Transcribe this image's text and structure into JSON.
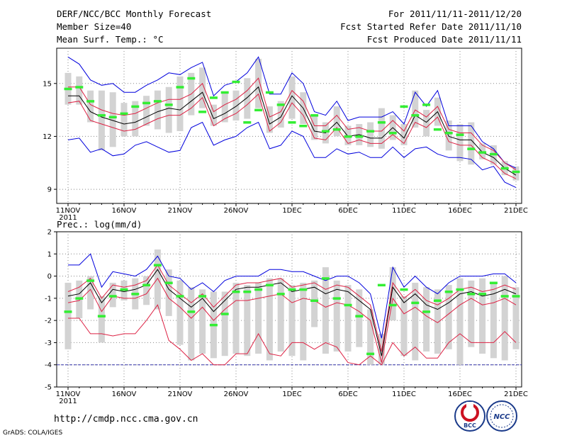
{
  "header": {
    "title": "DERF/NCC/BCC Monthly Forecast",
    "member_size": "Member Size=40",
    "variable_label": "Mean Surf. Temp.: °C",
    "period": "For 2011/11/11-2011/12/20",
    "started": "Fcst Started Refer Date 2011/11/10",
    "produced": "Fcst Produced Date 2011/11/11"
  },
  "footer": {
    "url": "http://cmdp.ncc.cma.gov.cn",
    "credit": "GrADS: COLA/IGES",
    "logo_left": "BCC",
    "logo_right": "NCC"
  },
  "colors": {
    "bar": "#d3d3d3",
    "green": "#33ee33",
    "mean": "#000000",
    "red": "#dd2244",
    "blue": "#0000dd",
    "grid": "#888888"
  },
  "chart_data": [
    {
      "type": "line",
      "title": "Mean Surf. Temp.: °C",
      "x_tick_labels": [
        "11NOV",
        "16NOV",
        "21NOV",
        "26NOV",
        "1DEC",
        "6DEC",
        "11DEC",
        "16DEC",
        "21DEC"
      ],
      "x_year_label": "2011",
      "ylim": [
        8.2,
        17.0
      ],
      "yticks": [
        9,
        12,
        15
      ],
      "days": 41,
      "series": [
        {
          "name": "mean",
          "values": [
            14.3,
            14.3,
            13.4,
            13.1,
            12.9,
            12.7,
            12.8,
            13.1,
            13.4,
            13.6,
            13.5,
            14.0,
            14.5,
            13.0,
            13.3,
            13.7,
            14.2,
            14.8,
            12.7,
            13.1,
            14.3,
            13.6,
            12.3,
            12.2,
            12.8,
            12.0,
            12.1,
            11.9,
            11.9,
            12.5,
            11.9,
            13.2,
            12.8,
            13.4,
            12.0,
            11.8,
            11.8,
            11.1,
            10.8,
            10.2,
            9.8
          ]
        },
        {
          "name": "upper",
          "values": [
            14.8,
            14.8,
            13.8,
            13.5,
            13.3,
            13.2,
            13.3,
            13.6,
            13.9,
            14.1,
            14.1,
            14.4,
            15.0,
            13.4,
            13.8,
            14.1,
            14.6,
            15.3,
            13.1,
            13.4,
            14.6,
            14.0,
            12.6,
            12.6,
            13.2,
            12.4,
            12.5,
            12.3,
            12.3,
            12.9,
            12.3,
            13.5,
            13.1,
            13.7,
            12.4,
            12.2,
            12.2,
            11.5,
            11.2,
            10.5,
            10.1
          ]
        },
        {
          "name": "lower",
          "values": [
            13.9,
            14.0,
            12.9,
            12.7,
            12.5,
            12.3,
            12.4,
            12.7,
            13.0,
            13.2,
            13.2,
            13.6,
            14.2,
            12.6,
            13.0,
            13.3,
            13.8,
            14.4,
            12.3,
            12.8,
            13.9,
            13.2,
            11.9,
            11.8,
            12.5,
            11.6,
            11.8,
            11.6,
            11.6,
            12.1,
            11.6,
            12.8,
            12.5,
            13.1,
            11.7,
            11.5,
            11.5,
            10.8,
            10.5,
            9.9,
            9.6
          ]
        },
        {
          "name": "max",
          "values": [
            16.5,
            16.1,
            15.2,
            14.9,
            15.0,
            14.5,
            14.5,
            14.9,
            15.2,
            15.6,
            15.5,
            15.9,
            16.2,
            14.3,
            14.9,
            15.1,
            15.6,
            16.5,
            14.4,
            14.4,
            15.6,
            15.0,
            13.4,
            13.2,
            14.0,
            12.9,
            13.1,
            13.1,
            13.1,
            13.4,
            12.7,
            14.5,
            13.7,
            14.6,
            12.6,
            12.6,
            12.6,
            11.7,
            11.3,
            10.5,
            10.2
          ]
        },
        {
          "name": "min",
          "values": [
            11.8,
            11.9,
            11.1,
            11.3,
            10.9,
            11.0,
            11.5,
            11.7,
            11.4,
            11.1,
            11.2,
            12.5,
            12.8,
            11.5,
            11.8,
            12.0,
            12.5,
            12.8,
            11.3,
            11.5,
            12.3,
            12.0,
            10.8,
            10.8,
            11.3,
            11.0,
            11.1,
            10.8,
            10.8,
            11.4,
            10.8,
            11.3,
            11.4,
            11.0,
            10.8,
            10.8,
            10.7,
            10.1,
            10.3,
            9.4,
            9.1
          ]
        },
        {
          "name": "green",
          "values": [
            14.7,
            14.8,
            14.0,
            13.2,
            13.1,
            13.3,
            13.7,
            13.9,
            14.0,
            13.8,
            14.8,
            15.3,
            13.4,
            14.2,
            14.5,
            15.1,
            12.8,
            13.5,
            14.5,
            13.8,
            12.8,
            12.6,
            13.2,
            12.3,
            12.4,
            12.0,
            12.0,
            12.3,
            12.8,
            12.2,
            13.7,
            13.2,
            13.8,
            12.4,
            12.2,
            12.1,
            11.3,
            11.1,
            11.0,
            10.2,
            10.0
          ]
        },
        {
          "name": "bar_top",
          "values": [
            15.6,
            15.4,
            14.6,
            14.6,
            14.5,
            13.9,
            14.0,
            14.3,
            14.6,
            14.8,
            15.4,
            15.6,
            15.9,
            13.8,
            14.5,
            14.6,
            15.3,
            16.4,
            13.7,
            14.0,
            15.4,
            14.5,
            13.2,
            12.8,
            13.7,
            12.6,
            12.7,
            12.8,
            13.6,
            13.2,
            12.7,
            14.6,
            13.5,
            14.2,
            12.9,
            12.7,
            12.8,
            11.6,
            11.5,
            10.6,
            10.3
          ]
        },
        {
          "name": "bar_bottom",
          "values": [
            13.8,
            13.8,
            12.8,
            11.2,
            11.4,
            12.0,
            12.0,
            12.6,
            12.4,
            12.2,
            12.3,
            13.2,
            13.6,
            12.6,
            12.8,
            12.9,
            13.0,
            13.6,
            12.2,
            12.5,
            13.0,
            12.7,
            11.8,
            11.6,
            12.0,
            11.5,
            11.5,
            11.4,
            11.3,
            11.8,
            11.5,
            12.5,
            12.0,
            12.6,
            11.2,
            10.6,
            10.4,
            10.7,
            10.4,
            9.8,
            9.5
          ]
        }
      ]
    },
    {
      "type": "line",
      "title": "Prec.: log(mm/d)",
      "x_tick_labels": [
        "11NOV",
        "16NOV",
        "21NOV",
        "26NOV",
        "1DEC",
        "6DEC",
        "11DEC",
        "16DEC",
        "21DEC"
      ],
      "x_year_label": "2011",
      "ylim": [
        -5,
        2
      ],
      "yticks": [
        -5,
        -4,
        -3,
        -2,
        -1,
        0,
        1,
        2
      ],
      "days": 41,
      "baseline": -4,
      "series": [
        {
          "name": "mean",
          "values": [
            -0.9,
            -0.8,
            -0.3,
            -1.2,
            -0.6,
            -0.7,
            -0.6,
            -0.4,
            0.3,
            -0.6,
            -1.0,
            -1.4,
            -1.0,
            -1.6,
            -1.1,
            -0.6,
            -0.5,
            -0.5,
            -0.4,
            -0.3,
            -0.7,
            -0.6,
            -0.5,
            -0.8,
            -0.6,
            -0.7,
            -1.1,
            -1.5,
            -3.6,
            -0.5,
            -1.2,
            -0.8,
            -1.3,
            -1.5,
            -1.2,
            -0.8,
            -0.7,
            -0.9,
            -0.8,
            -0.6,
            -0.8
          ]
        },
        {
          "name": "upper",
          "values": [
            -0.7,
            -0.5,
            -0.1,
            -1.0,
            -0.4,
            -0.5,
            -0.4,
            -0.2,
            0.5,
            -0.4,
            -0.8,
            -1.2,
            -0.8,
            -1.4,
            -0.9,
            -0.4,
            -0.3,
            -0.3,
            -0.2,
            -0.1,
            -0.5,
            -0.4,
            -0.3,
            -0.6,
            -0.4,
            -0.5,
            -0.9,
            -1.3,
            -3.4,
            -0.3,
            -1.0,
            -0.6,
            -1.1,
            -1.3,
            -1.0,
            -0.6,
            -0.5,
            -0.7,
            -0.6,
            -0.4,
            -0.6
          ]
        },
        {
          "name": "lower",
          "values": [
            -1.2,
            -1.1,
            -0.6,
            -1.6,
            -0.9,
            -1.0,
            -1.0,
            -0.8,
            -0.1,
            -1.0,
            -1.4,
            -1.9,
            -1.4,
            -2.0,
            -1.5,
            -1.1,
            -1.1,
            -1.0,
            -0.9,
            -0.8,
            -1.2,
            -1.0,
            -1.1,
            -1.4,
            -1.2,
            -1.3,
            -1.6,
            -2.0,
            -3.9,
            -1.0,
            -1.7,
            -1.4,
            -1.8,
            -2.1,
            -1.7,
            -1.3,
            -1.0,
            -1.3,
            -1.2,
            -1.0,
            -1.3
          ]
        },
        {
          "name": "max",
          "values": [
            0.5,
            0.5,
            1.0,
            -0.5,
            0.2,
            0.1,
            0.0,
            0.3,
            0.9,
            0.0,
            -0.1,
            -0.6,
            -0.3,
            -0.7,
            -0.2,
            0.0,
            0.0,
            0.0,
            0.3,
            0.3,
            0.2,
            0.2,
            0.0,
            -0.2,
            0.0,
            0.0,
            -0.3,
            -0.8,
            -2.8,
            0.4,
            -0.5,
            0.0,
            -0.5,
            -0.8,
            -0.3,
            0.0,
            0.0,
            0.0,
            0.1,
            0.1,
            -0.3
          ]
        },
        {
          "name": "min",
          "values": [
            -1.9,
            -1.9,
            -2.6,
            -2.6,
            -2.7,
            -2.6,
            -2.6,
            -2.0,
            -1.3,
            -2.9,
            -3.3,
            -3.8,
            -3.5,
            -4.0,
            -4.0,
            -3.5,
            -3.5,
            -2.6,
            -3.5,
            -3.6,
            -3.0,
            -3.0,
            -3.3,
            -3.0,
            -3.2,
            -3.9,
            -4.0,
            -3.6,
            -4.0,
            -3.0,
            -3.6,
            -3.2,
            -3.7,
            -3.7,
            -3.0,
            -2.6,
            -3.0,
            -3.0,
            -3.0,
            -2.5,
            -3.0
          ]
        },
        {
          "name": "green",
          "values": [
            -1.6,
            -1.0,
            -0.2,
            -1.8,
            -0.9,
            -0.6,
            -0.8,
            -0.4,
            0.5,
            -0.3,
            -0.9,
            -1.6,
            -0.9,
            -2.2,
            -1.7,
            -0.7,
            -0.7,
            -0.6,
            -0.4,
            -0.8,
            -0.6,
            -0.6,
            -1.1,
            -0.1,
            -1.0,
            -1.3,
            -1.8,
            -3.5,
            -0.4,
            -1.3,
            -0.6,
            -1.2,
            -1.6,
            -1.1,
            -0.7,
            -0.6,
            -0.8,
            -0.8,
            -0.3,
            -0.9,
            -0.9
          ]
        },
        {
          "name": "bar_top",
          "values": [
            -0.3,
            -0.2,
            0.0,
            -0.9,
            -0.3,
            -0.2,
            -0.1,
            0.0,
            1.2,
            0.3,
            -0.2,
            -0.5,
            -0.6,
            -0.7,
            -0.7,
            -0.3,
            -0.4,
            -0.3,
            -0.1,
            -0.1,
            -0.4,
            -0.3,
            -0.2,
            0.4,
            -0.2,
            -0.4,
            -0.6,
            -1.5,
            -2.6,
            0.4,
            -0.9,
            -0.3,
            -0.5,
            -0.6,
            -0.4,
            -0.1,
            -0.2,
            -0.1,
            -0.3,
            0.0,
            -0.5
          ]
        },
        {
          "name": "bar_bottom",
          "values": [
            -3.3,
            -1.9,
            -1.5,
            -3.0,
            -1.4,
            -1.1,
            -1.5,
            -1.3,
            -1.5,
            -1.8,
            -3.1,
            -3.8,
            -3.5,
            -3.7,
            -3.6,
            -3.5,
            -3.6,
            -3.5,
            -3.8,
            -3.4,
            -3.6,
            -3.8,
            -2.3,
            -3.5,
            -3.4,
            -3.4,
            -3.2,
            -4.0,
            -4.0,
            -2.0,
            -3.6,
            -3.8,
            -3.4,
            -3.5,
            -3.3,
            -4.0,
            -3.2,
            -3.5,
            -3.7,
            -3.8,
            -3.3
          ]
        }
      ]
    }
  ]
}
